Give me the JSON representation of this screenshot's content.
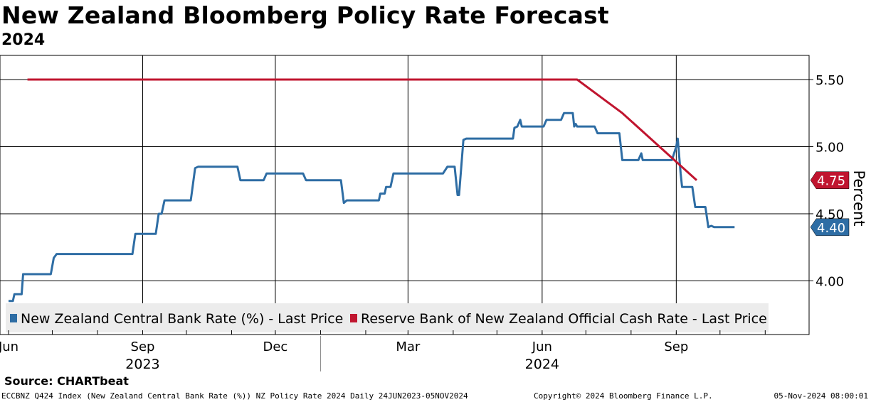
{
  "title": "New Zealand Bloomberg Policy Rate Forecast",
  "subtitle": "2024",
  "source": "Source: CHARTbeat",
  "footer": {
    "description": "ECCBNZ Q424 Index (New Zealand Central Bank Rate (%)) NZ Policy Rate 2024  Daily 24JUN2023-05NOV2024",
    "copyright": "Copyright© 2024 Bloomberg Finance L.P.",
    "timestamp": "05-Nov-2024 08:00:01"
  },
  "chart_data": {
    "type": "line",
    "y_axis": {
      "label": "Percent",
      "side": "right",
      "ticks": [
        4.0,
        4.5,
        5.0,
        5.5
      ],
      "tick_labels": [
        "4.00",
        "4.50",
        "5.00",
        "5.50"
      ],
      "ylim": [
        3.6,
        5.68
      ]
    },
    "x_axis": {
      "start": "2023-06-01",
      "end": "2024-11-15",
      "month_ticks": [
        {
          "label": "Jun",
          "date": "2023-06-01",
          "grid": false
        },
        {
          "label": "Sep",
          "date": "2023-09-01",
          "grid": true
        },
        {
          "label": "Dec",
          "date": "2023-12-01",
          "grid": true
        },
        {
          "label": "Mar",
          "date": "2024-03-01",
          "grid": true
        },
        {
          "label": "Jun",
          "date": "2024-06-01",
          "grid": true
        },
        {
          "label": "Sep",
          "date": "2024-09-01",
          "grid": true
        }
      ],
      "year_labels": [
        {
          "label": "2023",
          "date": "2023-09-01"
        },
        {
          "label": "2024",
          "date": "2024-06-01"
        }
      ],
      "year_divider": "2024-01-01"
    },
    "grid": true,
    "legend_position": "bottom-left",
    "series": [
      {
        "name": "New Zealand Central Bank Rate (%) - Last Price",
        "color": "#2e6da4",
        "last_value": "4.40",
        "points": [
          [
            "2023-06-01",
            3.85
          ],
          [
            "2023-06-04",
            3.85
          ],
          [
            "2023-06-05",
            3.9
          ],
          [
            "2023-06-10",
            3.9
          ],
          [
            "2023-06-11",
            4.05
          ],
          [
            "2023-06-30",
            4.05
          ],
          [
            "2023-07-02",
            4.17
          ],
          [
            "2023-07-04",
            4.2
          ],
          [
            "2023-08-25",
            4.2
          ],
          [
            "2023-08-27",
            4.35
          ],
          [
            "2023-09-10",
            4.35
          ],
          [
            "2023-09-12",
            4.5
          ],
          [
            "2023-09-14",
            4.5
          ],
          [
            "2023-09-16",
            4.6
          ],
          [
            "2023-10-04",
            4.6
          ],
          [
            "2023-10-07",
            4.84
          ],
          [
            "2023-10-09",
            4.85
          ],
          [
            "2023-11-05",
            4.85
          ],
          [
            "2023-11-07",
            4.75
          ],
          [
            "2023-11-23",
            4.75
          ],
          [
            "2023-11-25",
            4.8
          ],
          [
            "2023-12-20",
            4.8
          ],
          [
            "2023-12-22",
            4.75
          ],
          [
            "2024-01-15",
            4.75
          ],
          [
            "2024-01-17",
            4.58
          ],
          [
            "2024-01-19",
            4.6
          ],
          [
            "2024-02-10",
            4.6
          ],
          [
            "2024-02-11",
            4.65
          ],
          [
            "2024-02-14",
            4.65
          ],
          [
            "2024-02-15",
            4.7
          ],
          [
            "2024-02-18",
            4.7
          ],
          [
            "2024-02-20",
            4.8
          ],
          [
            "2024-03-25",
            4.8
          ],
          [
            "2024-03-28",
            4.85
          ],
          [
            "2024-04-02",
            4.85
          ],
          [
            "2024-04-04",
            4.64
          ],
          [
            "2024-04-05",
            4.64
          ],
          [
            "2024-04-08",
            5.05
          ],
          [
            "2024-04-10",
            5.06
          ],
          [
            "2024-05-12",
            5.06
          ],
          [
            "2024-05-13",
            5.14
          ],
          [
            "2024-05-15",
            5.15
          ],
          [
            "2024-05-17",
            5.2
          ],
          [
            "2024-05-18",
            5.15
          ],
          [
            "2024-06-02",
            5.15
          ],
          [
            "2024-06-04",
            5.2
          ],
          [
            "2024-06-14",
            5.2
          ],
          [
            "2024-06-16",
            5.25
          ],
          [
            "2024-06-22",
            5.25
          ],
          [
            "2024-06-23",
            5.15
          ],
          [
            "2024-06-24",
            5.17
          ],
          [
            "2024-06-25",
            5.15
          ],
          [
            "2024-07-07",
            5.15
          ],
          [
            "2024-07-09",
            5.1
          ],
          [
            "2024-07-24",
            5.1
          ],
          [
            "2024-07-26",
            4.9
          ],
          [
            "2024-08-06",
            4.9
          ],
          [
            "2024-08-08",
            4.95
          ],
          [
            "2024-08-09",
            4.9
          ],
          [
            "2024-08-29",
            4.9
          ],
          [
            "2024-09-01",
            5.0
          ],
          [
            "2024-09-02",
            5.06
          ],
          [
            "2024-09-04",
            4.8
          ],
          [
            "2024-09-05",
            4.7
          ],
          [
            "2024-09-12",
            4.7
          ],
          [
            "2024-09-14",
            4.55
          ],
          [
            "2024-09-21",
            4.55
          ],
          [
            "2024-09-23",
            4.4
          ],
          [
            "2024-09-25",
            4.41
          ],
          [
            "2024-09-27",
            4.4
          ],
          [
            "2024-10-11",
            4.4
          ]
        ]
      },
      {
        "name": "Reserve Bank of New Zealand Official Cash Rate - Last Price",
        "color": "#c0152f",
        "last_value": "4.75",
        "points": [
          [
            "2023-06-14",
            5.5
          ],
          [
            "2024-06-25",
            5.5
          ],
          [
            "2024-07-26",
            5.25
          ],
          [
            "2024-09-15",
            4.75
          ]
        ]
      }
    ]
  }
}
